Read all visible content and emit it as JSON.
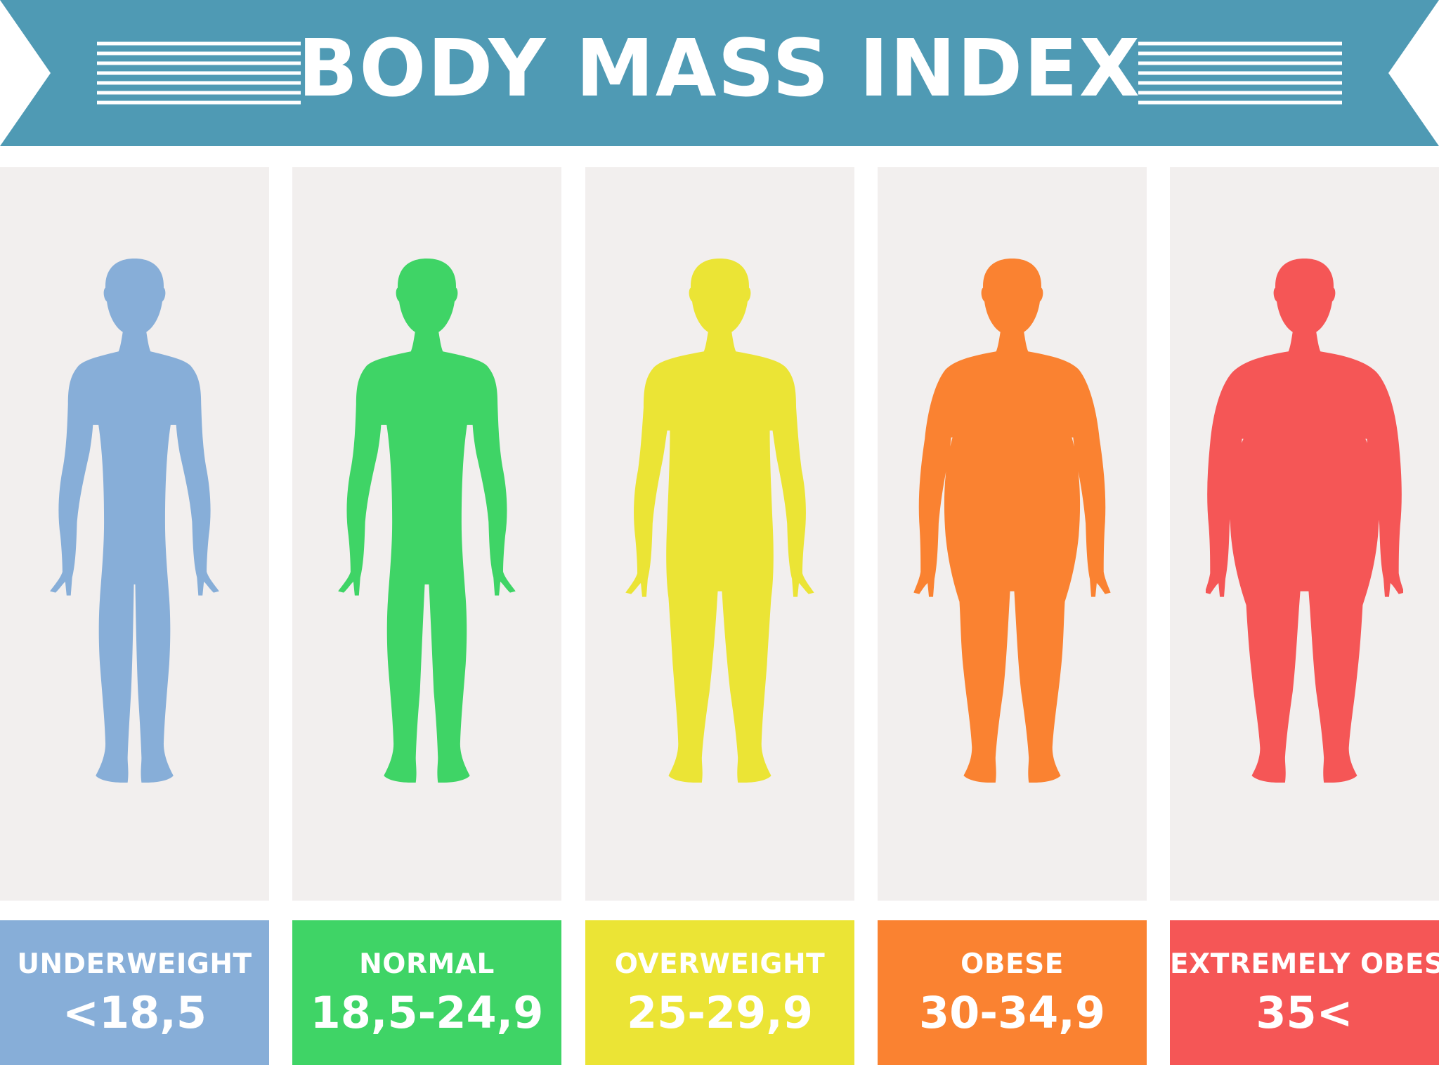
{
  "title": "BODY MASS INDEX",
  "banner_color": "#4f9ab4",
  "panel_color": "#f2efee",
  "categories": [
    {
      "name": "UNDERWEIGHT",
      "range": "<18,5",
      "color": "#87aed8",
      "build": "thin"
    },
    {
      "name": "NORMAL",
      "range": "18,5-24,9",
      "color": "#3fd466",
      "build": "normal"
    },
    {
      "name": "OVERWEIGHT",
      "range": "25-29,9",
      "color": "#ebe435",
      "build": "overweight"
    },
    {
      "name": "OBESE",
      "range": "30-34,9",
      "color": "#fa8231",
      "build": "obese"
    },
    {
      "name": "EXTREMELY OBESE",
      "range": "35<",
      "color": "#f55656",
      "build": "extremely-obese"
    }
  ]
}
